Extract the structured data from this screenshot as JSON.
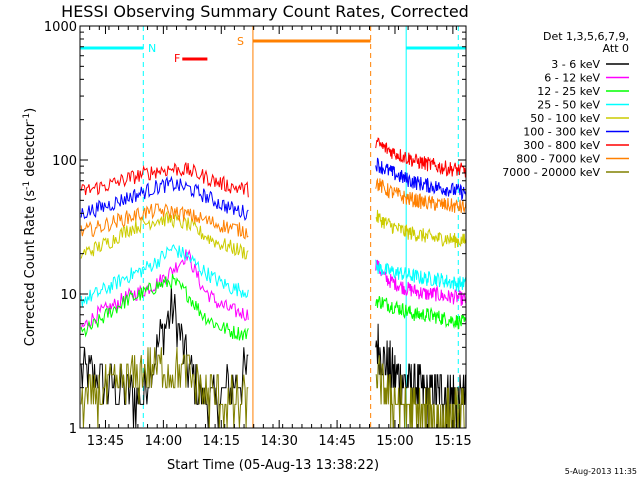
{
  "chart_data": {
    "type": "line",
    "title": "HESSI Observing Summary Count Rates, Corrected",
    "xlabel": "Start Time (05-Aug-13 13:38:22)",
    "ylabel_main": "Corrected Count Rate (s",
    "ylabel_sup1": "-1",
    "ylabel_mid": " detector",
    "ylabel_sup2": "-1",
    "ylabel_end": ")",
    "footer": "5-Aug-2013 11:35",
    "yscale": "log",
    "ylim": [
      1,
      1000
    ],
    "xlim_minutes": [
      0,
      100
    ],
    "xticks": [
      {
        "m": 6.6,
        "label": "13:45"
      },
      {
        "m": 21.6,
        "label": "14:00"
      },
      {
        "m": 36.6,
        "label": "14:15"
      },
      {
        "m": 51.6,
        "label": "14:30"
      },
      {
        "m": 66.6,
        "label": "14:45"
      },
      {
        "m": 81.6,
        "label": "15:00"
      },
      {
        "m": 96.6,
        "label": "15:15"
      }
    ],
    "yticks": [
      {
        "v": 1,
        "label": "1"
      },
      {
        "v": 10,
        "label": "10"
      },
      {
        "v": 100,
        "label": "100"
      },
      {
        "v": 1000,
        "label": "1000"
      }
    ],
    "legend": {
      "header1": "Det 1,3,5,6,7,9,",
      "header2": "Att 0",
      "position": "right"
    },
    "series": [
      {
        "name": "3 - 6 keV",
        "color": "#000000",
        "seg1": [
          2.5,
          2.4,
          2.0,
          1.8,
          1.6,
          4.0,
          8.0,
          3.0,
          1.6,
          1.6,
          2.2,
          2.6
        ],
        "seg2": [
          4.5,
          3.0,
          2.5,
          2.2,
          2.0,
          1.8,
          1.8,
          1.8,
          1.7,
          1.7
        ]
      },
      {
        "name": "6 - 12 keV",
        "color": "#ff00ff",
        "seg1": [
          5.5,
          7.0,
          8.0,
          9.5,
          10.5,
          12.0,
          15.0,
          20.0,
          11.0,
          8.5,
          7.5,
          7.0
        ],
        "seg2": [
          17.0,
          13.0,
          12.0,
          11.0,
          10.5,
          10.0,
          10.0,
          9.5,
          9.5,
          9.0
        ]
      },
      {
        "name": "12 - 25 keV",
        "color": "#00ff00",
        "seg1": [
          5.0,
          6.0,
          7.5,
          9.0,
          10.0,
          11.5,
          12.5,
          10.0,
          7.0,
          5.8,
          5.2,
          5.0
        ],
        "seg2": [
          9.0,
          8.5,
          8.0,
          7.5,
          7.0,
          7.0,
          6.8,
          6.5,
          6.3,
          6.0
        ]
      },
      {
        "name": "25 - 50 keV",
        "color": "#00ffff",
        "seg1": [
          9.0,
          10.0,
          11.5,
          13.5,
          15.0,
          17.5,
          22.0,
          19.0,
          15.0,
          12.5,
          11.0,
          10.5
        ],
        "seg2": [
          16.0,
          15.0,
          14.5,
          14.0,
          13.5,
          13.0,
          13.0,
          12.5,
          12.0,
          12.0
        ]
      },
      {
        "name": "50 - 100 keV",
        "color": "#cccc00",
        "seg1": [
          20.0,
          22.0,
          25.0,
          30.0,
          33.0,
          36.0,
          36.0,
          33.0,
          28.0,
          24.0,
          22.0,
          20.0
        ],
        "seg2": [
          38.0,
          34.0,
          31.0,
          29.0,
          28.0,
          27.0,
          26.0,
          26.0,
          25.0,
          25.0
        ]
      },
      {
        "name": "100 - 300 keV",
        "color": "#0000ff",
        "seg1": [
          40.0,
          43.0,
          47.0,
          52.0,
          57.0,
          63.0,
          66.0,
          62.0,
          55.0,
          48.0,
          43.0,
          40.0
        ],
        "seg2": [
          95.0,
          85.0,
          78.0,
          72.0,
          68.0,
          65.0,
          63.0,
          61.0,
          59.0,
          57.0
        ]
      },
      {
        "name": "300 - 800 keV",
        "color": "#ff0000",
        "seg1": [
          58.0,
          62.0,
          66.0,
          72.0,
          78.0,
          83.0,
          86.0,
          84.0,
          76.0,
          68.0,
          63.0,
          60.0
        ],
        "seg2": [
          135.0,
          122.0,
          112.0,
          105.0,
          98.0,
          94.0,
          90.0,
          87.0,
          85.0,
          83.0
        ]
      },
      {
        "name": "800 - 7000 keV",
        "color": "#ff8000",
        "seg1": [
          29.0,
          31.0,
          34.0,
          37.0,
          40.0,
          42.0,
          41.0,
          39.0,
          36.0,
          33.0,
          31.0,
          29.0
        ],
        "seg2": [
          68.0,
          60.0,
          56.0,
          52.0,
          50.0,
          48.0,
          47.0,
          46.0,
          45.0,
          44.0
        ]
      },
      {
        "name": "7000 - 20000 keV",
        "color": "#808000",
        "seg1": [
          1.6,
          1.7,
          2.0,
          2.2,
          2.6,
          2.8,
          2.8,
          2.5,
          1.9,
          1.6,
          1.5,
          1.5
        ],
        "seg2": [
          2.6,
          1.8,
          1.6,
          1.4,
          1.3,
          1.3,
          1.2,
          1.2,
          1.2,
          1.2
        ]
      }
    ],
    "segments": {
      "seg1_start": 0.3,
      "seg1_end": 43.6,
      "seg2_start": 76.6,
      "seg2_end": 100
    },
    "flags": {
      "night": {
        "label": "N",
        "color": "#00ffff",
        "bars": [
          [
            0,
            16.4
          ],
          [
            84.5,
            100
          ]
        ],
        "dashed": [
          16.4,
          98.0
        ],
        "solid": [
          84.5
        ]
      },
      "saa": {
        "label": "S",
        "color": "#ff8000",
        "bars": [
          [
            44.8,
            75.3
          ]
        ],
        "solid": [
          44.8
        ],
        "dashed": [
          75.3
        ]
      },
      "flare": {
        "label": "F",
        "color": "#ff0000",
        "bars": [
          [
            26.5,
            33.0
          ]
        ]
      }
    }
  }
}
